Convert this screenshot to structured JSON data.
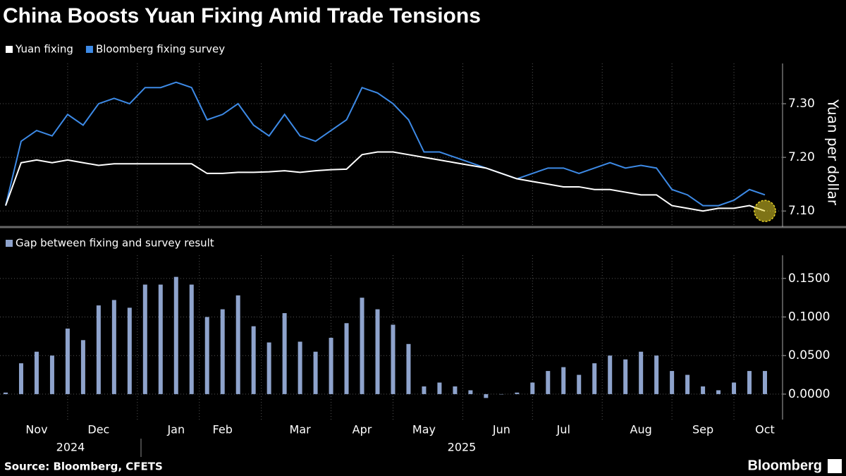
{
  "title": "China Boosts Yuan Fixing Amid Trade Tensions",
  "source": "Source: Bloomberg, CFETS",
  "brand": "Bloomberg",
  "years": [
    "2024",
    "2025"
  ],
  "chart_data": [
    {
      "type": "line",
      "y_label": "Yuan per dollar",
      "categories": [
        null,
        null,
        "Nov",
        null,
        null,
        null,
        "Dec",
        null,
        null,
        null,
        null,
        "Jan",
        null,
        null,
        "Feb",
        null,
        null,
        null,
        null,
        "Mar",
        null,
        null,
        null,
        "Apr",
        null,
        null,
        null,
        "May",
        null,
        null,
        null,
        null,
        "Jun",
        null,
        null,
        null,
        "Jul",
        null,
        null,
        null,
        null,
        "Aug",
        null,
        null,
        null,
        "Sep",
        null,
        null,
        null,
        "Oct"
      ],
      "series": [
        {
          "name": "Yuan fixing",
          "color": "#ffffff",
          "values": [
            7.11,
            7.19,
            7.195,
            7.19,
            7.195,
            7.19,
            7.185,
            7.188,
            7.188,
            7.188,
            7.188,
            7.188,
            7.188,
            7.17,
            7.17,
            7.172,
            7.172,
            7.173,
            7.175,
            7.172,
            7.175,
            7.177,
            7.178,
            7.205,
            7.21,
            7.21,
            7.205,
            7.2,
            7.195,
            7.19,
            7.185,
            7.18,
            7.17,
            7.16,
            7.155,
            7.15,
            7.145,
            7.145,
            7.14,
            7.14,
            7.135,
            7.13,
            7.13,
            7.11,
            7.105,
            7.1,
            7.105,
            7.105,
            7.11,
            7.1
          ]
        },
        {
          "name": "Bloomberg fixing survey",
          "color": "#3d8ae6",
          "values": [
            7.11,
            7.23,
            7.25,
            7.24,
            7.28,
            7.26,
            7.3,
            7.31,
            7.3,
            7.33,
            7.33,
            7.34,
            7.33,
            7.27,
            7.28,
            7.3,
            7.26,
            7.24,
            7.28,
            7.24,
            7.23,
            7.25,
            7.27,
            7.33,
            7.32,
            7.3,
            7.27,
            7.21,
            7.21,
            7.2,
            7.19,
            7.18,
            7.17,
            7.16,
            7.17,
            7.18,
            7.18,
            7.17,
            7.18,
            7.19,
            7.18,
            7.185,
            7.18,
            7.14,
            7.13,
            7.11,
            7.11,
            7.12,
            7.14,
            7.13
          ]
        }
      ],
      "ylim": [
        7.07,
        7.375
      ],
      "yticks": [
        {
          "value": 7.1,
          "label": "7.10"
        },
        {
          "value": 7.2,
          "label": "7.20"
        },
        {
          "value": 7.3,
          "label": "7.30"
        }
      ],
      "grid": true
    },
    {
      "type": "bar",
      "series": [
        {
          "name": "Gap between fixing and survey result",
          "color": "#8ea3cc",
          "values": [
            0.002,
            0.04,
            0.055,
            0.05,
            0.085,
            0.07,
            0.115,
            0.122,
            0.112,
            0.142,
            0.142,
            0.152,
            0.142,
            0.1,
            0.11,
            0.128,
            0.088,
            0.067,
            0.105,
            0.068,
            0.055,
            0.073,
            0.092,
            0.125,
            0.11,
            0.09,
            0.065,
            0.01,
            0.015,
            0.01,
            0.005,
            -0.005,
            0.0,
            0.002,
            0.015,
            0.03,
            0.035,
            0.025,
            0.04,
            0.05,
            0.045,
            0.055,
            0.05,
            0.03,
            0.025,
            0.01,
            0.005,
            0.015,
            0.03,
            0.03
          ]
        }
      ],
      "ylim": [
        -0.033,
        0.18
      ],
      "yticks": [
        {
          "value": 0,
          "label": "0.0000"
        },
        {
          "value": 0.05,
          "label": "0.0500"
        },
        {
          "value": 0.1,
          "label": "0.1000"
        },
        {
          "value": 0.15,
          "label": "0.1500"
        }
      ],
      "grid": true
    }
  ]
}
